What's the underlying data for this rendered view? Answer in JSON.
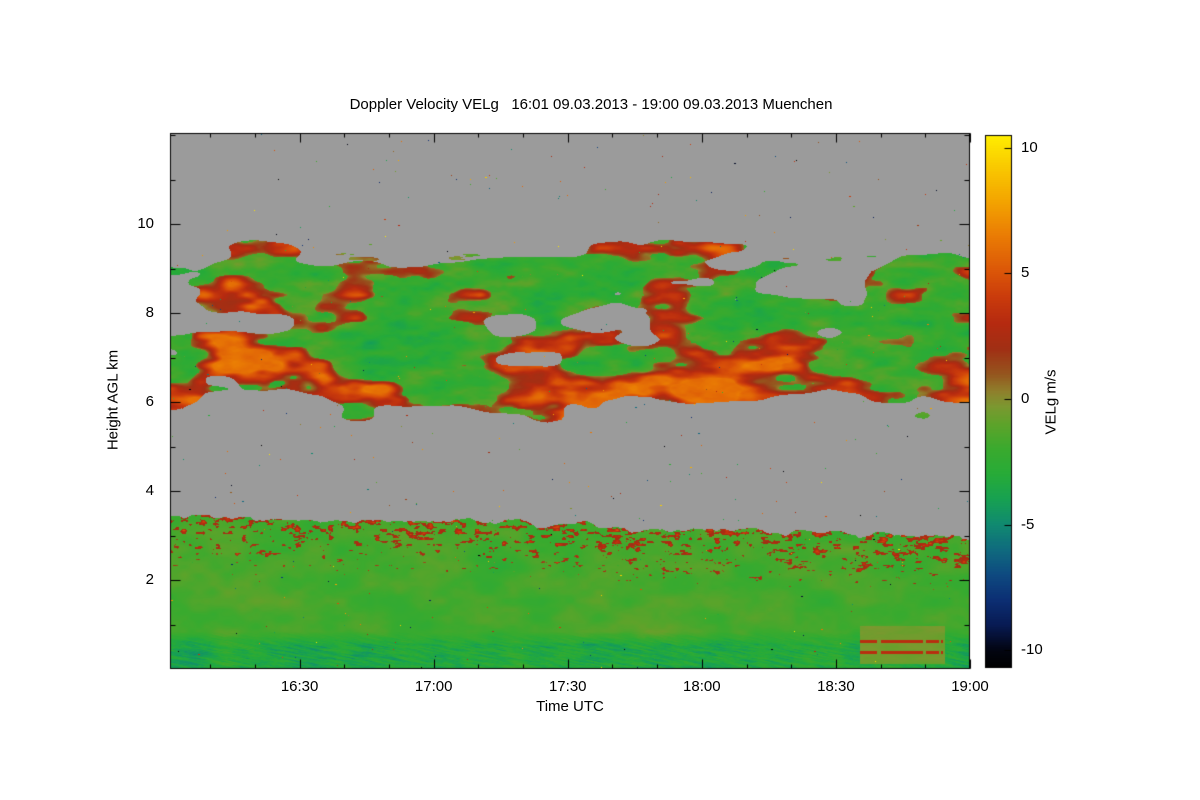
{
  "chart_data": {
    "type": "heatmap",
    "title": "Doppler Velocity VELg   16:01 09.03.2013 - 19:00 09.03.2013 Muenchen",
    "xlabel": "Time UTC",
    "ylabel": "Height AGL km",
    "x_axis": {
      "start": "16:01",
      "end": "19:00",
      "ticks": [
        "16:30",
        "17:00",
        "17:30",
        "18:00",
        "18:30",
        "19:00"
      ],
      "minor_tick_minutes": 10
    },
    "y_axis": {
      "min": 0,
      "max": 12.05,
      "ticks": [
        2,
        4,
        6,
        8,
        10
      ],
      "minor_step": 1
    },
    "colorbar": {
      "label": "VELg m/s",
      "min": -10.7,
      "max": 10.5,
      "ticks": [
        10,
        5,
        0,
        -5,
        -10
      ]
    },
    "background_color": "#ffffff",
    "no_data_color": "#9b9b9b",
    "colormap": {
      "stops": [
        {
          "v": -10.7,
          "c": "#000000"
        },
        {
          "v": -10.0,
          "c": "#020512"
        },
        {
          "v": -9.0,
          "c": "#081b54"
        },
        {
          "v": -8.0,
          "c": "#0c2f74"
        },
        {
          "v": -7.0,
          "c": "#0e4a80"
        },
        {
          "v": -6.0,
          "c": "#0f6b7e"
        },
        {
          "v": -5.0,
          "c": "#108a70"
        },
        {
          "v": -4.0,
          "c": "#17a152"
        },
        {
          "v": -3.0,
          "c": "#27ab38"
        },
        {
          "v": -2.0,
          "c": "#3aaa2e"
        },
        {
          "v": -1.0,
          "c": "#5ea32a"
        },
        {
          "v": -0.3,
          "c": "#7c9830"
        },
        {
          "v": 0.3,
          "c": "#8f802c"
        },
        {
          "v": 1.0,
          "c": "#95551e"
        },
        {
          "v": 2.0,
          "c": "#a12f14"
        },
        {
          "v": 3.0,
          "c": "#b52a10"
        },
        {
          "v": 4.0,
          "c": "#c93a0c"
        },
        {
          "v": 5.0,
          "c": "#da5408"
        },
        {
          "v": 6.5,
          "c": "#ea7c04"
        },
        {
          "v": 8.0,
          "c": "#f4a800"
        },
        {
          "v": 9.2,
          "c": "#f9c800"
        },
        {
          "v": 10.5,
          "c": "#ffee00"
        }
      ]
    },
    "layers": [
      {
        "name": "boundary-layer-cloud",
        "description": "continuous cloud/aerosol layer from surface, top 2.9-3.7 km, mostly green (downward -1 to -3 m/s), dotted orange updraft speckles (+1 to +5 m/s) in the top ~1.2 km, teal/blue diagonal fall streaks (-3 to -5.5 m/s) below 0.85 km, lighter gray-green patch with orange line echoes near 18:40-18:55 below 1 km",
        "top_km_left": 3.5,
        "top_km_right": 2.95,
        "top_wiggle_km": 0.38,
        "base_velocity_ms": -1.7,
        "variation_ms": 1.0,
        "blob_variation_ms": 0.6,
        "updraft_band_km": 1.25,
        "updraft_v_min_ms": 0.8,
        "updraft_v_max_ms": 5.0,
        "near_surface_top_km": 0.85,
        "near_surface_base_ms": -3.3,
        "near_surface_variation_ms": 1.6,
        "patch": {
          "t_start": 0.862,
          "t_end": 0.968,
          "top_km": 0.98,
          "bottom_km": 0.12,
          "v_ms": -0.6,
          "line_heights_km": [
            0.38,
            0.62
          ],
          "line_v_ms": 3.2
        }
      },
      {
        "name": "mid-level-cloud",
        "description": "broken patchy cloud deck between ~5.8 and ~9.6 km, green cores (-1 to -3 m/s) with brick/orange updraft patches (+1 to +6 m/s) concentrated on the underside (below ~7.3 km) and in thin wispy filaments near cloud top 8.8-9.6 km; gray gaps in between",
        "core_band_km": [
          6.3,
          8.95
        ],
        "edge_feather_km": 0.78,
        "coverage_threshold": -0.25,
        "green_v_ms": -2.0,
        "green_variation_ms": 1.5,
        "updraft_threshold": 0.18,
        "updraft_v_min_ms": 0.6,
        "updraft_v_max_ms": 6.0,
        "underside_updraft_below_km": 7.3,
        "wisp_band_km": [
          8.8,
          9.65
        ]
      },
      {
        "name": "random-speckles",
        "description": "isolated single-pixel noise returns of random velocity scattered over the gray no-data background",
        "count": 420
      }
    ]
  }
}
